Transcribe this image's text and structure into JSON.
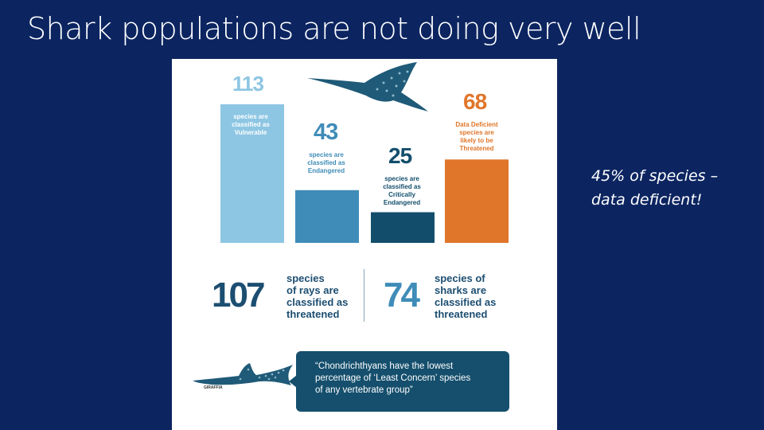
{
  "slide": {
    "title": "Shark populations are not doing very well",
    "side_note": "45% of species – data deficient!"
  },
  "chart_data": {
    "type": "bar",
    "categories": [
      "Vulnerable",
      "Endangered",
      "Critically Endangered",
      "Data Deficient likely Threatened"
    ],
    "values": [
      113,
      43,
      25,
      68
    ],
    "labels": [
      "113",
      "43",
      "25",
      "68"
    ],
    "captions": [
      "species are\nclassified as\nVulnerable",
      "species are\nclassified as\nEndangered",
      "species are\nclassified as\nCritically\nEndangered",
      "Data Deficient\nspecies are\nlikely to be\nThreatened"
    ],
    "colors": [
      "#8dc6e3",
      "#3f8cb8",
      "#124e6b",
      "#e0762a"
    ],
    "title": "",
    "xlabel": "",
    "ylabel": ""
  },
  "stats": {
    "rays_number": "107",
    "rays_text": "species\nof rays are\nclassified as\nthreatened",
    "sharks_number": "74",
    "sharks_text": "species of\nsharks are\nclassified as\nthreatened"
  },
  "quote": {
    "text": "“Chondrichthyans have the lowest\npercentage of ‘Least Concern’ species\nof any vertebrate group”"
  },
  "species_label": "GIRAFFIA",
  "icons": [
    "eagle-ray-illustration",
    "guitarfish-illustration"
  ]
}
